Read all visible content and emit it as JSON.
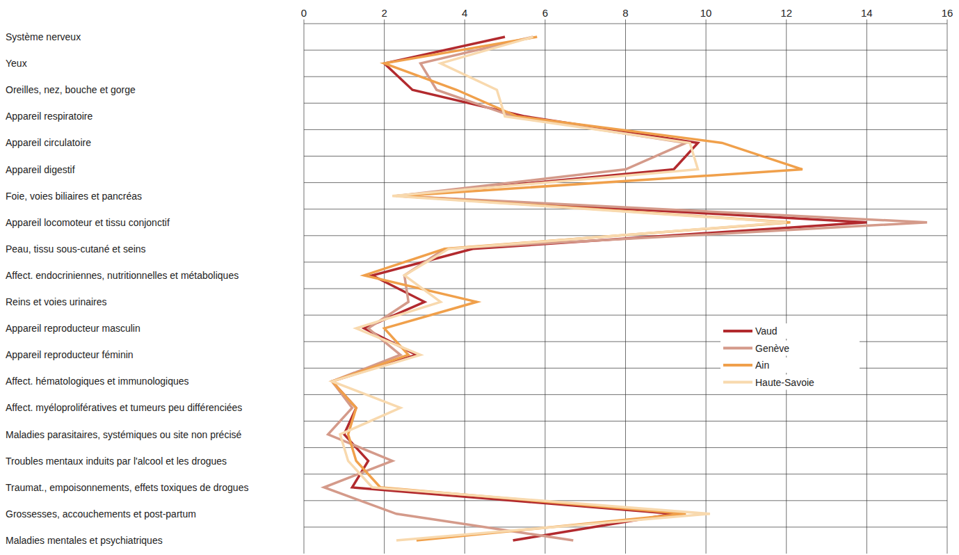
{
  "chart_data": {
    "type": "line",
    "orientation": "horizontal",
    "grid": true,
    "legend": "right",
    "categories": [
      "Système nerveux",
      "Yeux",
      "Oreilles, nez, bouche et gorge",
      "Appareil respiratoire",
      "Appareil circulatoire",
      "Appareil digestif",
      "Foie, voies biliaires et pancréas",
      "Appareil locomoteur et tissu conjonctif",
      "Peau, tissu sous-cutané et seins",
      "Affect. endocriniennes, nutritionnelles et métaboliques",
      "Reins et voies urinaires",
      "Appareil reproducteur masculin",
      "Appareil reproducteur féminin",
      "Affect. hématologiques et immunologiques",
      "Affect. myéloprolifératives et tumeurs peu différenciées",
      "Maladies parasitaires, systémiques ou site non précisé",
      "Troubles mentaux induits par l'alcool et les drogues",
      "Traumat., empoisonnements, effets toxiques de drogues",
      "Grossesses, accouchements et post-partum",
      "Maladies mentales et psychiatriques"
    ],
    "xlim": [
      0,
      16
    ],
    "xticks": [
      0,
      2,
      4,
      6,
      8,
      10,
      12,
      14,
      16
    ],
    "series": [
      {
        "name": "Vaud",
        "color": "#b22a2e",
        "values": [
          5.0,
          2.0,
          2.7,
          5.5,
          9.8,
          9.2,
          2.3,
          14.0,
          4.2,
          1.7,
          3.0,
          1.5,
          2.8,
          0.7,
          1.3,
          1.0,
          1.6,
          1.2,
          9.2,
          5.2
        ]
      },
      {
        "name": "Genève",
        "color": "#d49a8a",
        "values": [
          5.7,
          2.9,
          3.3,
          5.2,
          9.5,
          8.0,
          2.3,
          15.5,
          3.5,
          2.5,
          2.6,
          1.6,
          2.4,
          0.7,
          1.2,
          0.6,
          2.2,
          0.5,
          2.3,
          6.7
        ]
      },
      {
        "name": "Ain",
        "color": "#f0a04b",
        "values": [
          5.8,
          2.0,
          3.8,
          5.3,
          10.4,
          12.4,
          2.4,
          12.1,
          3.5,
          1.5,
          4.3,
          2.0,
          2.6,
          0.7,
          1.3,
          1.1,
          1.3,
          1.9,
          9.5,
          2.8
        ]
      },
      {
        "name": "Haute-Savoie",
        "color": "#f8d9ae",
        "values": [
          5.7,
          3.4,
          4.8,
          5.0,
          9.6,
          9.8,
          2.2,
          12.0,
          3.6,
          2.5,
          3.4,
          1.3,
          2.9,
          0.7,
          2.4,
          0.9,
          1.1,
          1.7,
          10.1,
          2.3
        ]
      }
    ]
  }
}
